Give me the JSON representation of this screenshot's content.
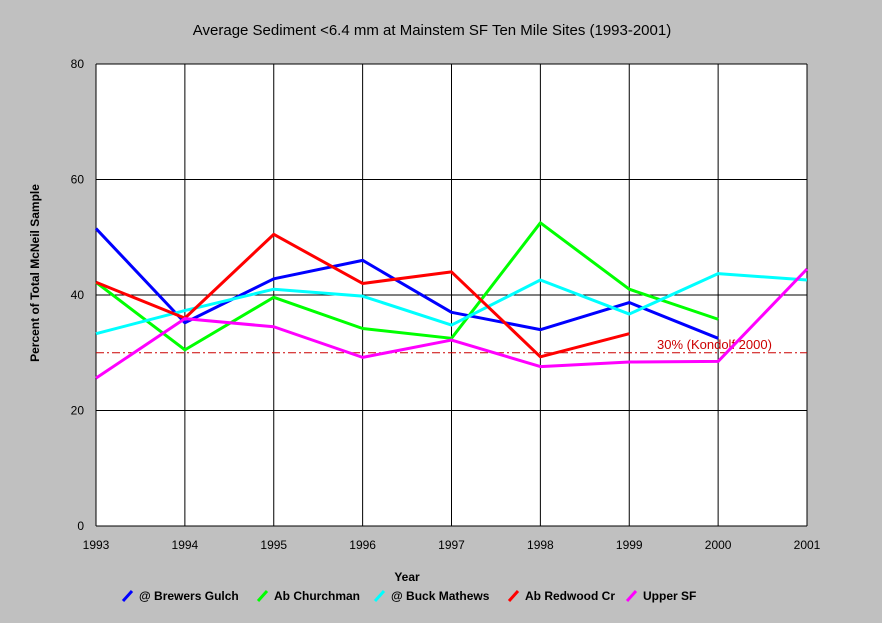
{
  "colors": {
    "background": "#c0c0c0",
    "plot_background": "#ffffff",
    "grid": "#000000",
    "threshold": "#cc0000"
  },
  "chart_data": {
    "type": "line",
    "title": "Average Sediment <6.4 mm at Mainstem SF Ten Mile Sites (1993-2001)",
    "xlabel": "Year",
    "ylabel": "Percent of Total McNeil Sample",
    "x": [
      1993,
      1994,
      1995,
      1996,
      1997,
      1998,
      1999,
      2000,
      2001
    ],
    "x_tick_labels": [
      "1993",
      "1994",
      "1995",
      "1996",
      "1997",
      "1998",
      "1999",
      "2000",
      "2001"
    ],
    "xlim": [
      1993,
      2001
    ],
    "ylim": [
      0,
      80
    ],
    "y_ticks": [
      0,
      20,
      40,
      60,
      80
    ],
    "y_tick_labels": [
      "0",
      "20",
      "40",
      "60",
      "80"
    ],
    "grid": true,
    "legend_position": "bottom",
    "series": [
      {
        "name": "@ Brewers Gulch",
        "color": "#0000ff",
        "values": [
          51.5,
          35.2,
          42.8,
          46.0,
          37.0,
          34.0,
          38.7,
          32.5,
          null
        ]
      },
      {
        "name": "Ab Churchman",
        "color": "#00ff00",
        "values": [
          42.2,
          30.5,
          39.6,
          34.2,
          32.5,
          52.5,
          41.0,
          35.8,
          null
        ]
      },
      {
        "name": "@ Buck Mathews",
        "color": "#00ffff",
        "values": [
          33.3,
          37.3,
          41.0,
          39.8,
          34.8,
          42.6,
          36.7,
          43.7,
          42.6
        ]
      },
      {
        "name": "Ab Redwood Cr",
        "color": "#ff0000",
        "values": [
          42.2,
          36.0,
          50.5,
          42.0,
          44.0,
          29.3,
          33.3,
          null,
          null
        ]
      },
      {
        "name": "Upper SF",
        "color": "#ff00ff",
        "values": [
          25.6,
          35.9,
          34.5,
          29.2,
          32.2,
          27.6,
          28.4,
          28.5,
          44.5
        ]
      }
    ],
    "reference_line": {
      "y": 30,
      "label": "30% (Kondolf 2000)",
      "color": "#cc0000"
    }
  }
}
